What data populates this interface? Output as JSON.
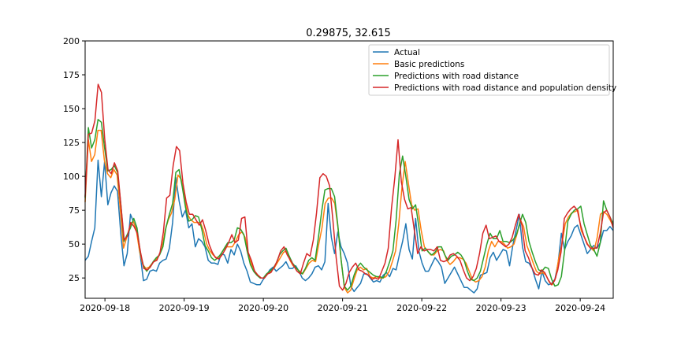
{
  "chart_data": {
    "type": "line",
    "title": "0.29875, 32.615",
    "xlabel": "",
    "ylabel": "",
    "x_start": "2020-09-17T18:00",
    "x_end": "2020-09-24T10:00",
    "xlim": [
      "2020-09-17T18:00",
      "2020-09-24T10:00"
    ],
    "ylim": [
      10,
      200
    ],
    "grid": false,
    "legend_position": "top-right",
    "x_ticks": [
      "2020-09-18",
      "2020-09-19",
      "2020-09-20",
      "2020-09-21",
      "2020-09-22",
      "2020-09-23",
      "2020-09-24"
    ],
    "y_ticks": [
      25,
      50,
      75,
      100,
      125,
      150,
      175,
      200
    ],
    "colors": [
      "#1f77b4",
      "#ff7f0e",
      "#2ca02c",
      "#d62728"
    ],
    "series": [
      {
        "name": "Actual",
        "color": "#1f77b4",
        "values": [
          38,
          41,
          52,
          62,
          112,
          85,
          111,
          79,
          88,
          93,
          89,
          58,
          34,
          43,
          72,
          66,
          60,
          42,
          23,
          24,
          30,
          31,
          30,
          36,
          38,
          39,
          47,
          66,
          99,
          82,
          70,
          75,
          62,
          65,
          48,
          54,
          52,
          48,
          38,
          36,
          36,
          35,
          43,
          42,
          36,
          46,
          42,
          50,
          45,
          36,
          30,
          22,
          21,
          20,
          20,
          24,
          27,
          31,
          33,
          30,
          32,
          34,
          37,
          32,
          32,
          34,
          30,
          25,
          23,
          25,
          28,
          33,
          34,
          31,
          37,
          80,
          55,
          43,
          59,
          48,
          43,
          36,
          19,
          15,
          18,
          21,
          28,
          28,
          25,
          22,
          23,
          22,
          27,
          29,
          26,
          32,
          31,
          42,
          52,
          65,
          46,
          39,
          69,
          45,
          36,
          30,
          30,
          35,
          40,
          37,
          33,
          21,
          25,
          29,
          33,
          28,
          23,
          18,
          18,
          16,
          14,
          17,
          27,
          28,
          29,
          40,
          44,
          38,
          42,
          46,
          45,
          34,
          49,
          60,
          72,
          48,
          37,
          36,
          32,
          24,
          17,
          30,
          23,
          20,
          21,
          24,
          36,
          58,
          46,
          52,
          56,
          62,
          64,
          57,
          50,
          43,
          46,
          49,
          47,
          51,
          60,
          60,
          63,
          60
        ]
      },
      {
        "name": "Basic predictions",
        "color": "#ff7f0e",
        "values": [
          81,
          127,
          111,
          116,
          134,
          134,
          112,
          102,
          99,
          105,
          101,
          75,
          47,
          55,
          63,
          67,
          60,
          45,
          35,
          32,
          33,
          36,
          38,
          41,
          47,
          60,
          68,
          73,
          83,
          101,
          98,
          85,
          72,
          68,
          66,
          66,
          66,
          60,
          50,
          45,
          42,
          40,
          41,
          45,
          48,
          48,
          48,
          52,
          57,
          59,
          55,
          43,
          35,
          30,
          27,
          25,
          25,
          28,
          30,
          32,
          36,
          40,
          44,
          45,
          38,
          34,
          32,
          30,
          28,
          32,
          36,
          38,
          37,
          50,
          62,
          80,
          84,
          84,
          80,
          62,
          38,
          18,
          14,
          16,
          24,
          31,
          33,
          31,
          32,
          26,
          25,
          26,
          25,
          25,
          26,
          30,
          37,
          45,
          65,
          92,
          111,
          95,
          79,
          75,
          76,
          60,
          48,
          45,
          42,
          42,
          45,
          46,
          45,
          38,
          35,
          37,
          40,
          40,
          39,
          36,
          30,
          24,
          22,
          23,
          26,
          33,
          45,
          52,
          48,
          52,
          52,
          50,
          47,
          48,
          50,
          58,
          68,
          63,
          49,
          43,
          36,
          30,
          28,
          29,
          27,
          22,
          20,
          25,
          40,
          50,
          65,
          70,
          73,
          74,
          75,
          60,
          55,
          50,
          47,
          45,
          55,
          72,
          74,
          72,
          68,
          63
        ]
      },
      {
        "name": "Predictions with road distance",
        "color": "#2ca02c",
        "values": [
          84,
          136,
          121,
          127,
          142,
          140,
          121,
          104,
          105,
          108,
          103,
          80,
          52,
          57,
          62,
          69,
          62,
          44,
          34,
          30,
          33,
          37,
          40,
          42,
          48,
          63,
          72,
          80,
          103,
          105,
          92,
          77,
          67,
          68,
          71,
          70,
          61,
          49,
          45,
          40,
          38,
          40,
          43,
          47,
          51,
          51,
          53,
          62,
          61,
          57,
          45,
          35,
          30,
          27,
          25,
          25,
          28,
          30,
          32,
          36,
          42,
          45,
          47,
          41,
          36,
          33,
          30,
          28,
          32,
          38,
          40,
          38,
          55,
          74,
          90,
          91,
          91,
          85,
          64,
          39,
          19,
          16,
          19,
          27,
          33,
          36,
          33,
          31,
          29,
          27,
          26,
          26,
          25,
          30,
          37,
          45,
          68,
          102,
          115,
          100,
          83,
          76,
          79,
          63,
          45,
          47,
          44,
          42,
          44,
          48,
          48,
          42,
          38,
          41,
          42,
          44,
          42,
          38,
          30,
          24,
          23,
          25,
          30,
          40,
          50,
          58,
          54,
          54,
          60,
          52,
          52,
          51,
          53,
          56,
          64,
          72,
          66,
          52,
          44,
          37,
          31,
          30,
          33,
          32,
          24,
          19,
          20,
          26,
          45,
          67,
          72,
          75,
          76,
          78,
          65,
          57,
          49,
          46,
          41,
          51,
          82,
          75,
          70,
          65
        ]
      },
      {
        "name": "Predictions with road distance and population density",
        "color": "#d62728",
        "values": [
          85,
          131,
          132,
          141,
          168,
          162,
          128,
          105,
          102,
          110,
          104,
          78,
          53,
          56,
          66,
          63,
          58,
          44,
          32,
          31,
          33,
          37,
          38,
          44,
          59,
          84,
          86,
          108,
          122,
          119,
          95,
          81,
          72,
          72,
          68,
          64,
          68,
          60,
          50,
          44,
          40,
          39,
          42,
          46,
          51,
          57,
          51,
          53,
          69,
          70,
          44,
          38,
          30,
          27,
          25,
          25,
          28,
          29,
          33,
          38,
          45,
          48,
          42,
          38,
          34,
          30,
          28,
          36,
          43,
          41,
          53,
          73,
          99,
          102,
          100,
          93,
          68,
          40,
          19,
          16,
          21,
          29,
          33,
          36,
          31,
          30,
          28,
          27,
          24,
          25,
          24,
          30,
          36,
          47,
          77,
          99,
          127,
          96,
          83,
          76,
          77,
          60,
          43,
          48,
          45,
          46,
          46,
          45,
          48,
          38,
          37,
          38,
          42,
          43,
          41,
          38,
          31,
          25,
          23,
          26,
          32,
          43,
          58,
          64,
          54,
          55,
          56,
          52,
          50,
          48,
          50,
          55,
          64,
          72,
          64,
          45,
          40,
          33,
          28,
          27,
          31,
          29,
          24,
          20,
          23,
          31,
          44,
          69,
          73,
          76,
          78,
          75,
          64,
          56,
          50,
          47,
          47,
          47,
          58,
          73,
          75,
          70,
          62
        ]
      }
    ]
  }
}
